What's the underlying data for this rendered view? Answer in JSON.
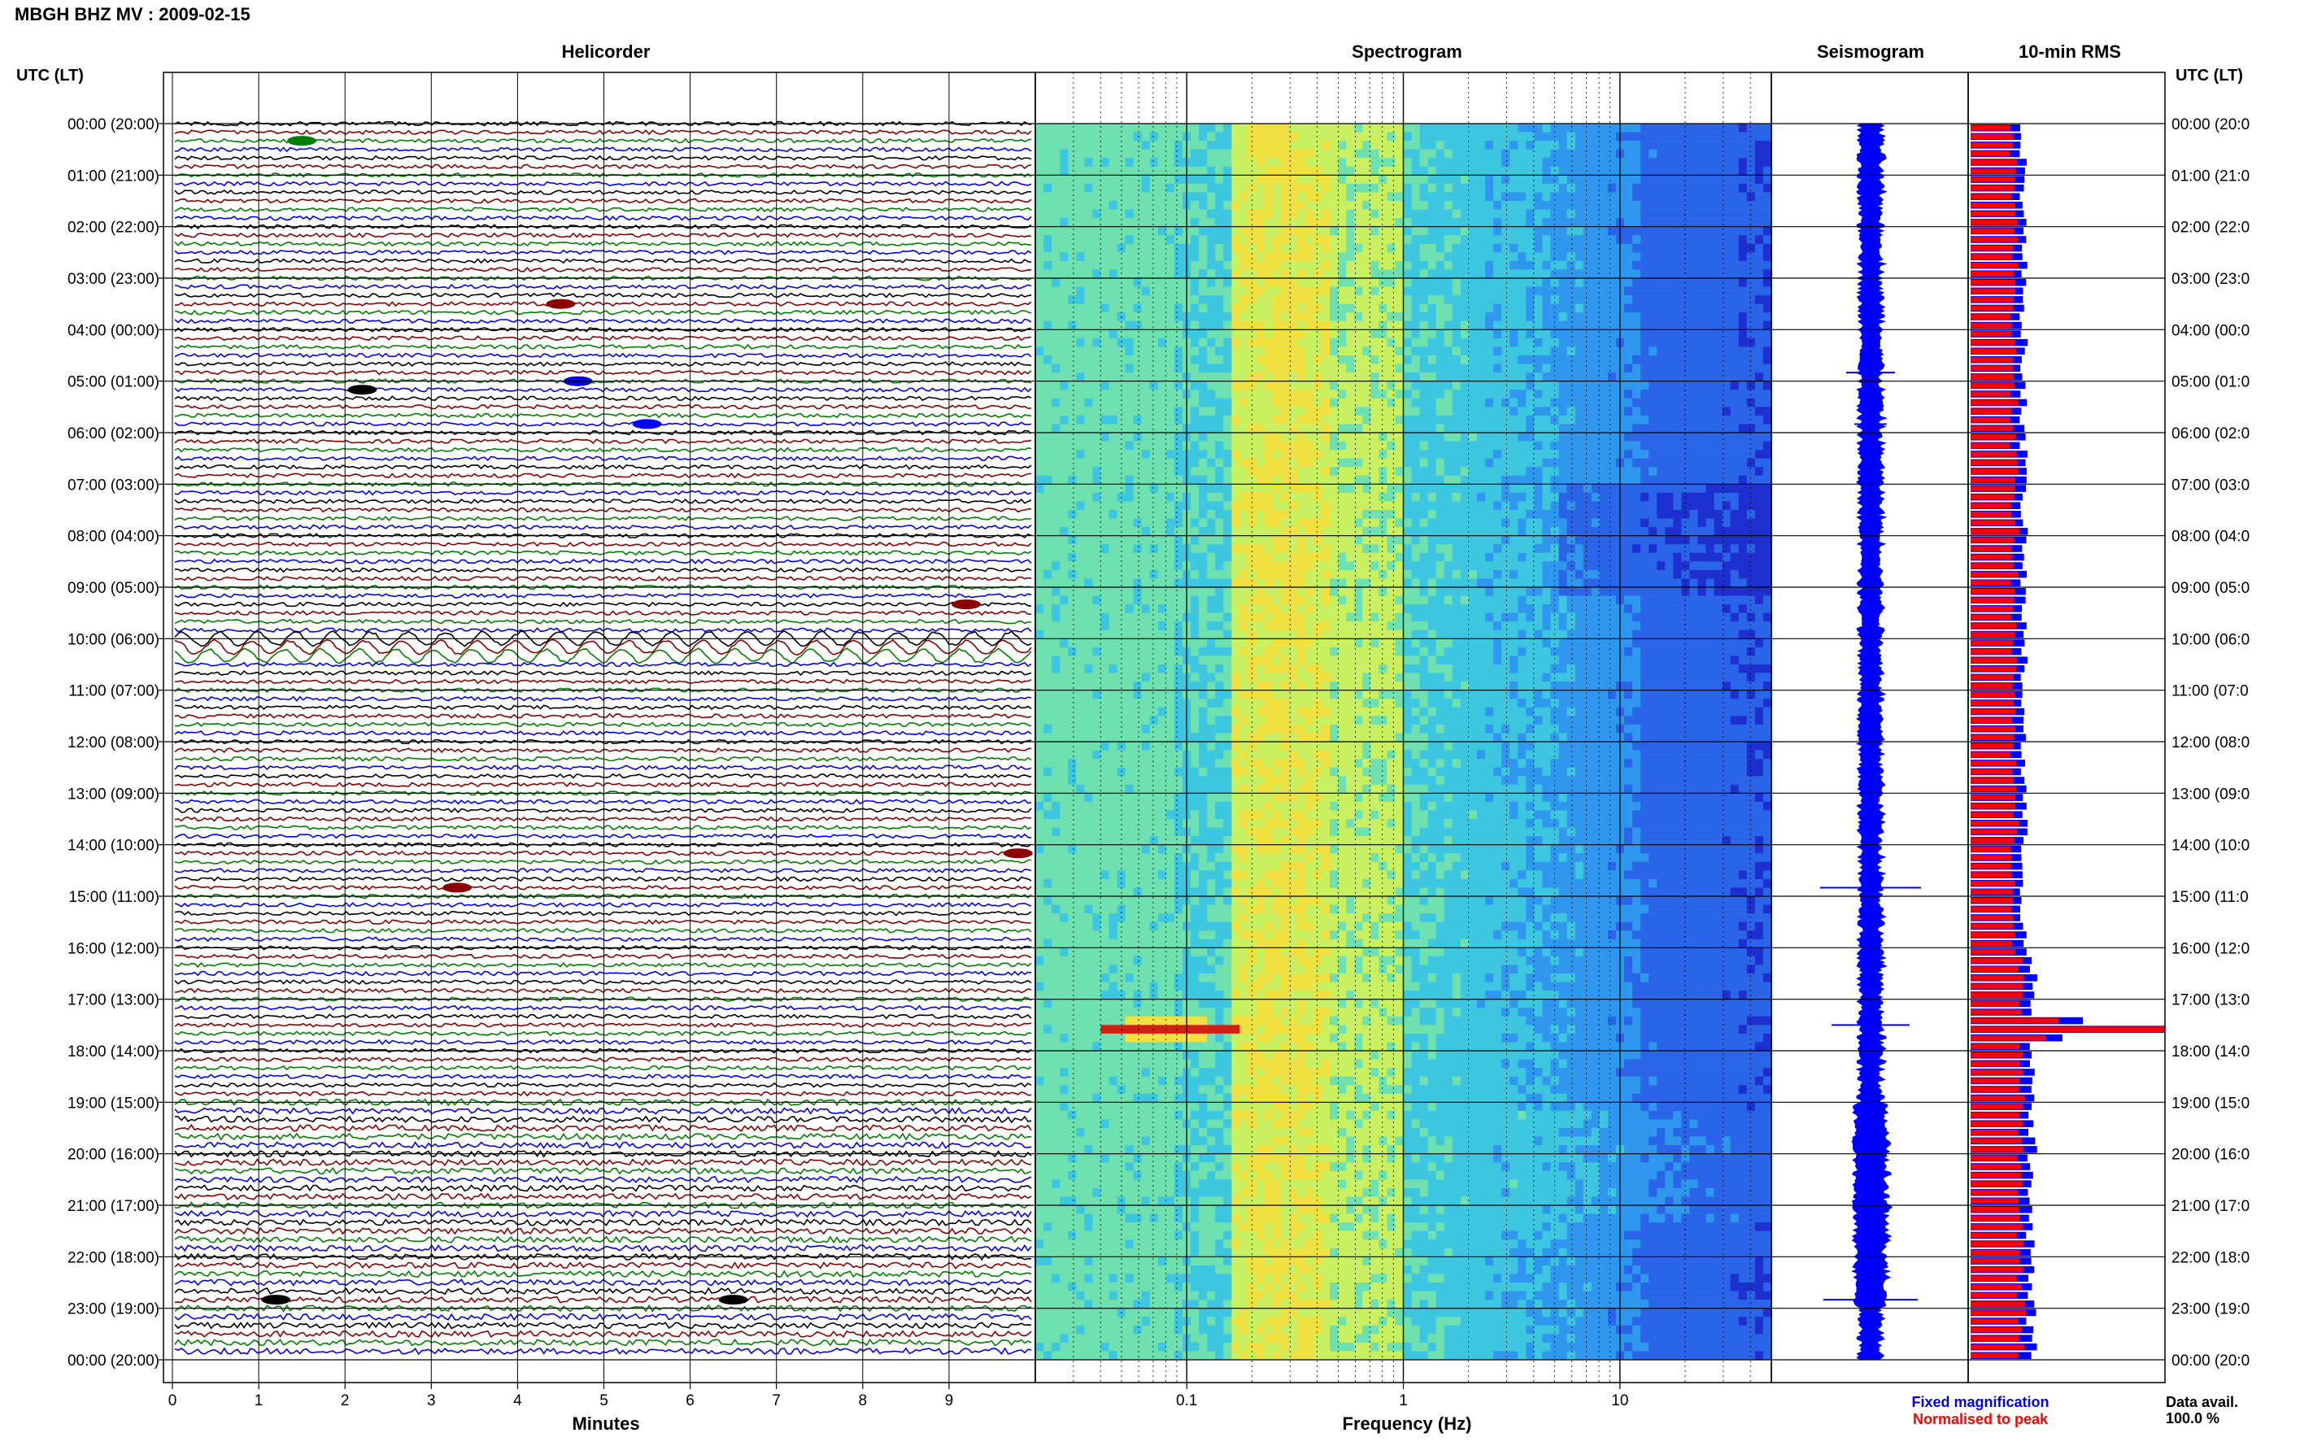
{
  "header": {
    "title": "MBGH BHZ MV : 2009-02-15"
  },
  "panels": {
    "helicorder": "Helicorder",
    "spectrogram": "Spectrogram",
    "seismogram": "Seismogram",
    "rms": "10-min RMS"
  },
  "axes": {
    "left_time_label": "UTC (LT)",
    "right_time_label": "UTC (LT)",
    "helicorder_xlabel": "Minutes",
    "spectrogram_xlabel": "Frequency (Hz)"
  },
  "legend": {
    "fixed": "Fixed magnification",
    "normalised": "Normalised to peak",
    "fixed_color": "#0000ff",
    "normalised_color": "#ff0000"
  },
  "footer": {
    "data_avail_label": "Data avail.",
    "data_avail_value": "100.0 %"
  },
  "chart_data": [
    {
      "type": "line",
      "name": "helicorder",
      "title": "Helicorder",
      "xlabel": "Minutes",
      "xlim": [
        0,
        10
      ],
      "x_ticks": [
        "0",
        "1",
        "2",
        "3",
        "4",
        "5",
        "6",
        "7",
        "8",
        "9"
      ],
      "time_labels_left": [
        "00:00 (20:00)",
        "01:00 (21:00)",
        "02:00 (22:00)",
        "03:00 (23:00)",
        "04:00 (00:00)",
        "05:00 (01:00)",
        "06:00 (02:00)",
        "07:00 (03:00)",
        "08:00 (04:00)",
        "09:00 (05:00)",
        "10:00 (06:00)",
        "11:00 (07:00)",
        "12:00 (08:00)",
        "13:00 (09:00)",
        "14:00 (10:00)",
        "15:00 (11:00)",
        "16:00 (12:00)",
        "17:00 (13:00)",
        "18:00 (14:00)",
        "19:00 (15:00)",
        "20:00 (16:00)",
        "21:00 (17:00)",
        "22:00 (18:00)",
        "23:00 (19:00)",
        "00:00 (20:00)"
      ],
      "time_labels_right": [
        "00:00 (20:0",
        "01:00 (21:0",
        "02:00 (22:0",
        "03:00 (23:0",
        "04:00 (00:0",
        "05:00 (01:0",
        "06:00 (02:0",
        "07:00 (03:0",
        "08:00 (04:0",
        "09:00 (05:0",
        "10:00 (06:0",
        "11:00 (07:0",
        "12:00 (08:0",
        "13:00 (09:0",
        "14:00 (10:0",
        "15:00 (11:0",
        "16:00 (12:0",
        "17:00 (13:0",
        "18:00 (14:0",
        "19:00 (15:0",
        "20:00 (16:0",
        "21:00 (17:0",
        "22:00 (18:0",
        "23:00 (19:0",
        "00:00 (20:0"
      ],
      "traces_per_hour": 6,
      "trace_colors": [
        "#000000",
        "#8b0000",
        "#008000",
        "#0000ff"
      ],
      "events": [
        {
          "row": 2,
          "minute": 1.5,
          "color": "#008000"
        },
        {
          "row": 21,
          "minute": 4.5,
          "color": "#8b0000"
        },
        {
          "row": 31,
          "minute": 2.2,
          "color": "#000000"
        },
        {
          "row": 30,
          "minute": 4.7,
          "color": "#0000ff"
        },
        {
          "row": 35,
          "minute": 5.5,
          "color": "#0000ff"
        },
        {
          "row": 56,
          "minute": 9.2,
          "color": "#8b0000"
        },
        {
          "row": 85,
          "minute": 9.8,
          "color": "#8b0000"
        },
        {
          "row": 89,
          "minute": 3.3,
          "color": "#8b0000"
        },
        {
          "row": 137,
          "minute": 1.2,
          "color": "#000000"
        },
        {
          "row": 137,
          "minute": 6.5,
          "color": "#000000"
        }
      ]
    },
    {
      "type": "heatmap",
      "name": "spectrogram",
      "title": "Spectrogram",
      "xlabel": "Frequency (Hz)",
      "x_scale": "log",
      "xlim": [
        0.02,
        50
      ],
      "x_ticks": [
        "0.1",
        "1",
        "10"
      ],
      "colors": [
        "#1e2fd0",
        "#2a64e8",
        "#2f97ee",
        "#3cc6e0",
        "#6fe0b0",
        "#c8f060",
        "#f0e040",
        "#f08020",
        "#d02010"
      ]
    },
    {
      "type": "line",
      "name": "seismogram",
      "title": "Seismogram",
      "color": "#0000ff"
    },
    {
      "type": "bar",
      "name": "rms",
      "title": "10-min RMS",
      "legend": [
        "Fixed magnification",
        "Normalised to peak"
      ],
      "series_colors": [
        "#0000ff",
        "#ff0000"
      ],
      "peak_row": 105
    }
  ]
}
